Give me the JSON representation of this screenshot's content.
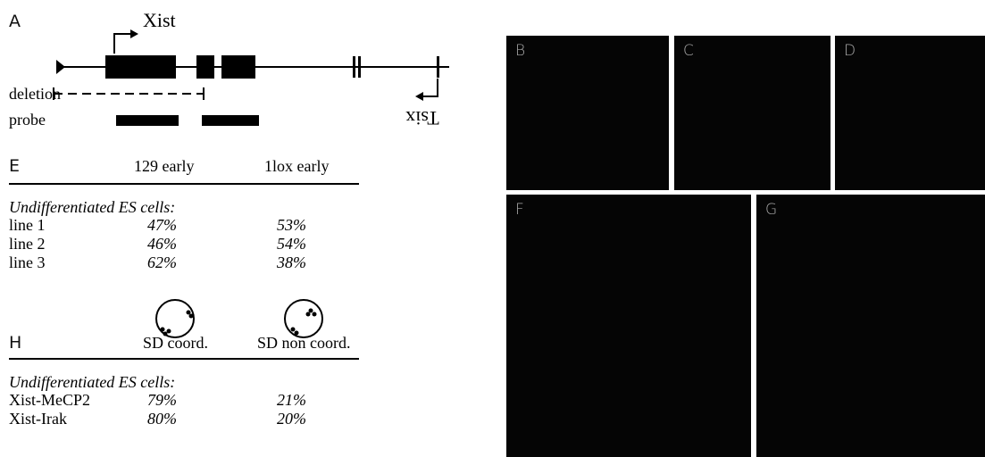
{
  "panel_a": {
    "label": "A",
    "xist": "Xist",
    "tsix": "Tsix",
    "deletion": "deletion",
    "probe": "probe"
  },
  "panel_e": {
    "label": "E",
    "headers": [
      "129 early",
      "1lox early"
    ],
    "subtitle": "Undifferentiated ES cells:",
    "rows": [
      [
        "line 1",
        "47%",
        "53%"
      ],
      [
        "line 2",
        "46%",
        "54%"
      ],
      [
        "line 3",
        "62%",
        "38%"
      ]
    ]
  },
  "panel_h": {
    "label": "H",
    "headers": [
      "SD coord.",
      "SD non coord."
    ],
    "subtitle": "Undifferentiated ES cells:",
    "rows": [
      [
        "Xist-MeCP2",
        "79%",
        "21%"
      ],
      [
        "Xist-Irak",
        "80%",
        "20%"
      ]
    ]
  },
  "image_panels": [
    "B",
    "C",
    "D",
    "F",
    "G"
  ]
}
